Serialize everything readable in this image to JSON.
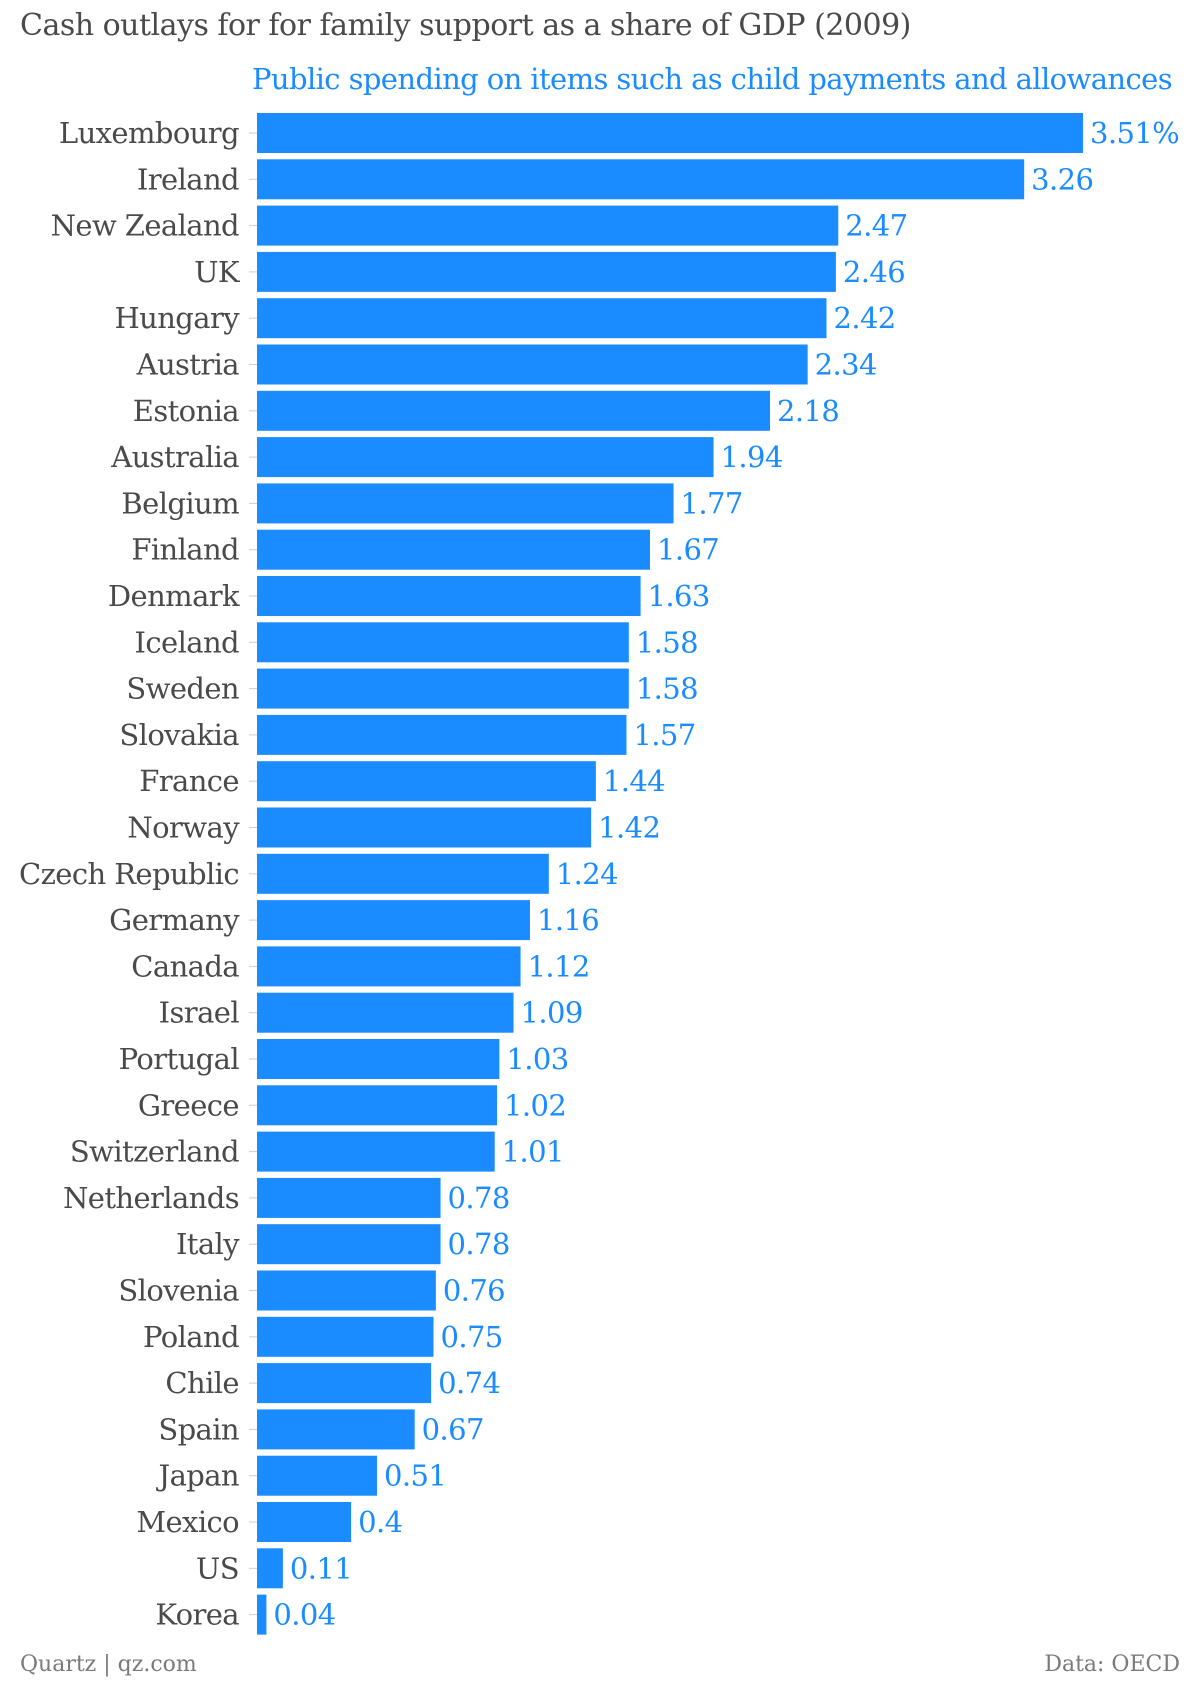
{
  "chart_data": {
    "type": "bar",
    "orientation": "horizontal",
    "title": "Cash outlays for for family support as a share of GDP (2009)",
    "subtitle": "Public spending on items such as child payments and allowances",
    "categories": [
      "Luxembourg",
      "Ireland",
      "New Zealand",
      "UK",
      "Hungary",
      "Austria",
      "Estonia",
      "Australia",
      "Belgium",
      "Finland",
      "Denmark",
      "Iceland",
      "Sweden",
      "Slovakia",
      "France",
      "Norway",
      "Czech Republic",
      "Germany",
      "Canada",
      "Israel",
      "Portugal",
      "Greece",
      "Switzerland",
      "Netherlands",
      "Italy",
      "Slovenia",
      "Poland",
      "Chile",
      "Spain",
      "Japan",
      "Mexico",
      "US",
      "Korea"
    ],
    "values": [
      3.51,
      3.26,
      2.47,
      2.46,
      2.42,
      2.34,
      2.18,
      1.94,
      1.77,
      1.67,
      1.63,
      1.58,
      1.58,
      1.57,
      1.44,
      1.42,
      1.24,
      1.16,
      1.12,
      1.09,
      1.03,
      1.02,
      1.01,
      0.78,
      0.78,
      0.76,
      0.75,
      0.74,
      0.67,
      0.51,
      0.4,
      0.11,
      0.04
    ],
    "value_labels": [
      "3.51%",
      "3.26",
      "2.47",
      "2.46",
      "2.42",
      "2.34",
      "2.18",
      "1.94",
      "1.77",
      "1.67",
      "1.63",
      "1.58",
      "1.58",
      "1.57",
      "1.44",
      "1.42",
      "1.24",
      "1.16",
      "1.12",
      "1.09",
      "1.03",
      "1.02",
      "1.01",
      "0.78",
      "0.78",
      "0.76",
      "0.75",
      "0.74",
      "0.67",
      "0.51",
      "0.4",
      "0.11",
      "0.04"
    ],
    "xlim": [
      0,
      3.51
    ],
    "xlabel": "",
    "ylabel": "",
    "grid": false,
    "bar_color": "#1a8cff",
    "label_color": "#1a8cff",
    "category_color": "#4a4a4a"
  },
  "footer": {
    "source": "Quartz | qz.com",
    "data": "Data: OECD"
  }
}
